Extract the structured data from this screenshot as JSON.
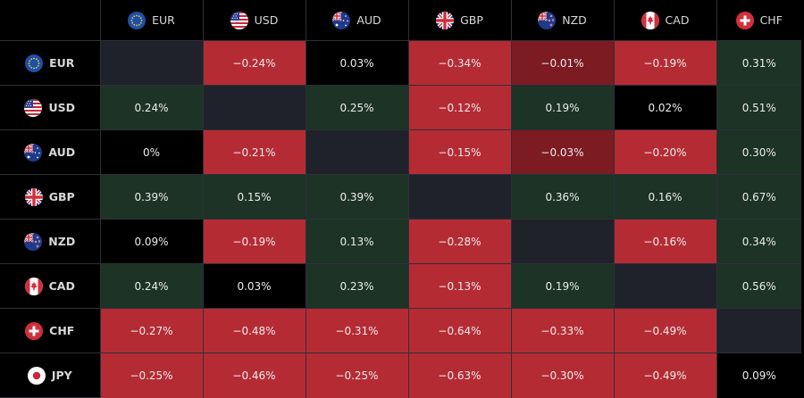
{
  "currencies": [
    "EUR",
    "USD",
    "AUD",
    "GBP",
    "NZD",
    "CAD",
    "CHF"
  ],
  "rows": [
    {
      "label": "EUR",
      "cells": [
        "",
        "−0.24%",
        "0.03%",
        "−0.34%",
        "−0.01%",
        "−0.19%",
        "0.31%"
      ]
    },
    {
      "label": "USD",
      "cells": [
        "0.24%",
        "",
        "0.25%",
        "−0.12%",
        "0.19%",
        "0.02%",
        "0.51%"
      ]
    },
    {
      "label": "AUD",
      "cells": [
        "0%",
        "−0.21%",
        "",
        "−0.15%",
        "−0.03%",
        "−0.20%",
        "0.30%"
      ]
    },
    {
      "label": "GBP",
      "cells": [
        "0.39%",
        "0.15%",
        "0.39%",
        "",
        "0.36%",
        "0.16%",
        "0.67%"
      ]
    },
    {
      "label": "NZD",
      "cells": [
        "0.09%",
        "−0.19%",
        "0.13%",
        "−0.28%",
        "",
        "−0.16%",
        "0.34%"
      ]
    },
    {
      "label": "CAD",
      "cells": [
        "0.24%",
        "0.03%",
        "0.23%",
        "−0.13%",
        "0.19%",
        "",
        "0.56%"
      ]
    },
    {
      "label": "CHF",
      "cells": [
        "−0.27%",
        "−0.48%",
        "−0.31%",
        "−0.64%",
        "−0.33%",
        "−0.49%",
        ""
      ]
    },
    {
      "label": "JPY",
      "cells": [
        "−0.25%",
        "−0.46%",
        "−0.25%",
        "−0.63%",
        "−0.30%",
        "−0.49%",
        "0.09%"
      ]
    }
  ],
  "colors": {
    "positive": "#1c3325",
    "negative": "#b52b34",
    "weak_negative": "#7c1b22",
    "neutral": "#000000",
    "empty": "#1f212b",
    "grid": "#2e3038"
  }
}
